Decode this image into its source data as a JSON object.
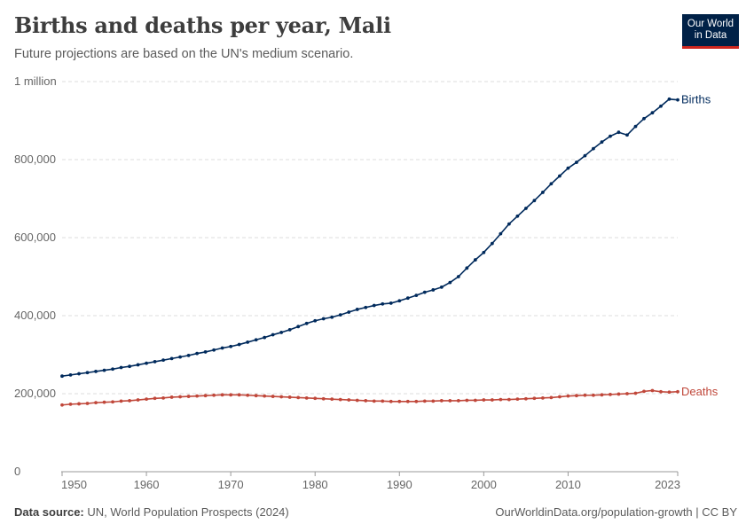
{
  "header": {
    "title": "Births and deaths per year, Mali",
    "subtitle": "Future projections are based on the UN's medium scenario."
  },
  "logo": {
    "line1": "Our World",
    "line2": "in Data"
  },
  "footer": {
    "source_label": "Data source:",
    "source_text": " UN, World Population Prospects (2024)",
    "right_text": "OurWorldinData.org/population-growth | CC BY"
  },
  "colors": {
    "births": "#002a5c",
    "deaths": "#c0473a",
    "grid": "#dddddd",
    "axis": "#666666"
  },
  "chart_data": {
    "type": "line",
    "title": "Births and deaths per year, Mali",
    "subtitle": "Future projections are based on the UN's medium scenario.",
    "xlim": [
      1950,
      2023
    ],
    "ylim": [
      0,
      1000000
    ],
    "y_ticks": [
      {
        "value": 0,
        "label": "0"
      },
      {
        "value": 200000,
        "label": "200,000"
      },
      {
        "value": 400000,
        "label": "400,000"
      },
      {
        "value": 600000,
        "label": "600,000"
      },
      {
        "value": 800000,
        "label": "800,000"
      },
      {
        "value": 1000000,
        "label": "1 million"
      }
    ],
    "x_ticks": [
      {
        "value": 1950,
        "label": "1950"
      },
      {
        "value": 1960,
        "label": "1960"
      },
      {
        "value": 1970,
        "label": "1970"
      },
      {
        "value": 1980,
        "label": "1980"
      },
      {
        "value": 1990,
        "label": "1990"
      },
      {
        "value": 2000,
        "label": "2000"
      },
      {
        "value": 2010,
        "label": "2010"
      },
      {
        "value": 2023,
        "label": "2023"
      }
    ],
    "grid": "horizontal-dashed",
    "legend": "inline-right",
    "x": [
      1950,
      1951,
      1952,
      1953,
      1954,
      1955,
      1956,
      1957,
      1958,
      1959,
      1960,
      1961,
      1962,
      1963,
      1964,
      1965,
      1966,
      1967,
      1968,
      1969,
      1970,
      1971,
      1972,
      1973,
      1974,
      1975,
      1976,
      1977,
      1978,
      1979,
      1980,
      1981,
      1982,
      1983,
      1984,
      1985,
      1986,
      1987,
      1988,
      1989,
      1990,
      1991,
      1992,
      1993,
      1994,
      1995,
      1996,
      1997,
      1998,
      1999,
      2000,
      2001,
      2002,
      2003,
      2004,
      2005,
      2006,
      2007,
      2008,
      2009,
      2010,
      2011,
      2012,
      2013,
      2014,
      2015,
      2016,
      2017,
      2018,
      2019,
      2020,
      2021,
      2022,
      2023
    ],
    "series": [
      {
        "name": "Births",
        "color": "#002a5c",
        "values": [
          245000,
          248000,
          251000,
          254000,
          257000,
          260000,
          263000,
          267000,
          270000,
          274000,
          278000,
          282000,
          286000,
          290000,
          294000,
          298000,
          303000,
          307000,
          312000,
          317000,
          321000,
          326000,
          332000,
          338000,
          344000,
          351000,
          357000,
          364000,
          372000,
          380000,
          387000,
          392000,
          396000,
          402000,
          409000,
          416000,
          421000,
          426000,
          430000,
          432000,
          438000,
          445000,
          452000,
          460000,
          466000,
          473000,
          485000,
          500000,
          522000,
          543000,
          562000,
          585000,
          610000,
          635000,
          655000,
          675000,
          695000,
          716000,
          738000,
          758000,
          778000,
          793000,
          810000,
          828000,
          845000,
          860000,
          870000,
          863000,
          885000,
          905000,
          920000,
          937000,
          955000,
          953000
        ]
      },
      {
        "name": "Deaths",
        "color": "#c0473a",
        "values": [
          171000,
          173000,
          174000,
          175000,
          177000,
          178000,
          179000,
          181000,
          182000,
          184000,
          186000,
          188000,
          189000,
          191000,
          192000,
          193000,
          194000,
          195000,
          196000,
          197000,
          197000,
          197000,
          196000,
          195000,
          194000,
          193000,
          192000,
          191000,
          190000,
          189000,
          188000,
          187000,
          186000,
          185000,
          184000,
          183000,
          182000,
          181000,
          181000,
          180000,
          180000,
          180000,
          180000,
          181000,
          181000,
          182000,
          182000,
          182000,
          183000,
          183000,
          184000,
          184000,
          185000,
          185000,
          186000,
          187000,
          188000,
          189000,
          190000,
          192000,
          194000,
          195000,
          196000,
          196000,
          197000,
          198000,
          199000,
          200000,
          201000,
          206000,
          208000,
          205000,
          204000,
          205000
        ]
      }
    ]
  }
}
